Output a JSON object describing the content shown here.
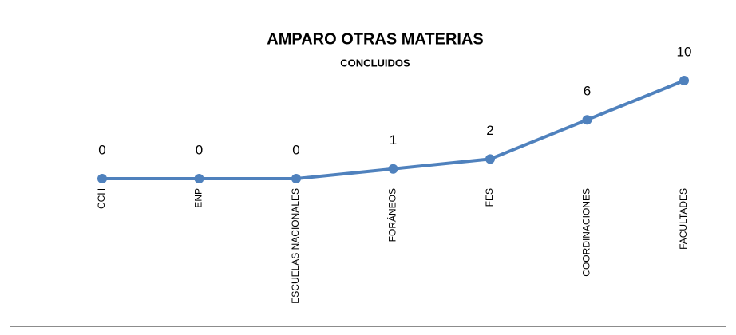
{
  "chart_data": {
    "type": "line",
    "title": "AMPARO OTRAS MATERIAS",
    "subtitle": "CONCLUIDOS",
    "categories": [
      "CCH",
      "ENP",
      "ESCUELAS NACIONALES",
      "FORÁNEOS",
      "FES",
      "COORDINACIONES",
      "FACULTADES"
    ],
    "series": [
      {
        "name": "CONCLUIDOS",
        "color": "#4f81bd",
        "values": [
          0,
          0,
          0,
          1,
          2,
          6,
          10
        ]
      }
    ]
  }
}
